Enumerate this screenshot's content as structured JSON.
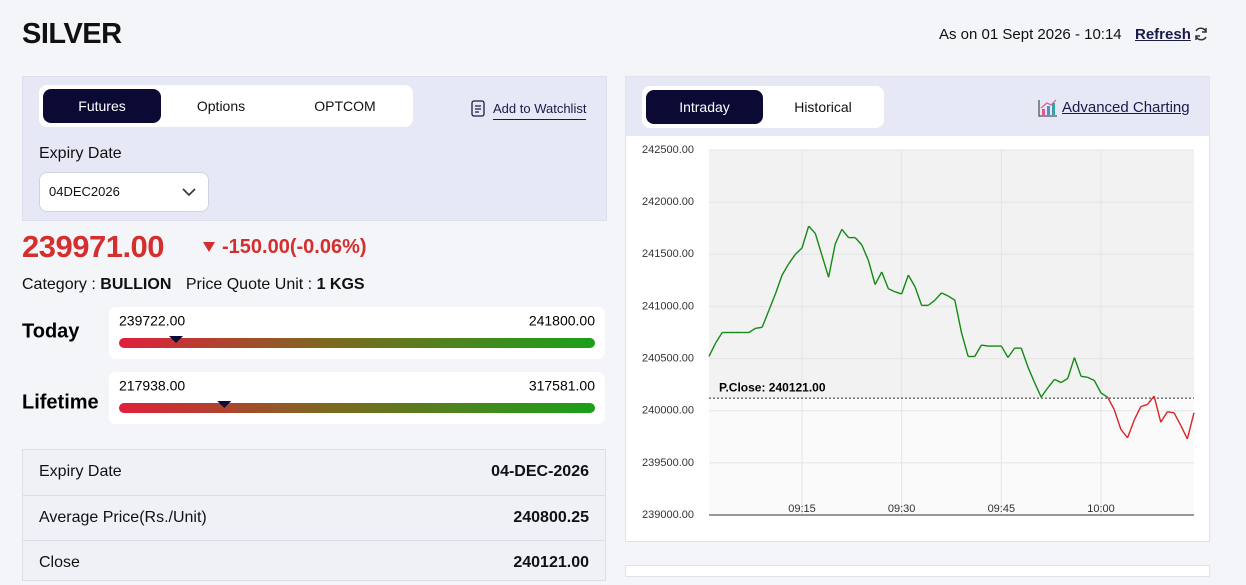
{
  "header": {
    "title": "SILVER",
    "as_on": "As on 01 Sept 2026 - 10:14",
    "refresh": "Refresh"
  },
  "left": {
    "tabs": [
      "Futures",
      "Options",
      "OPTCOM"
    ],
    "watchlist": "Add to Watchlist",
    "expiry_label": "Expiry Date",
    "expiry_value": "04DEC2026",
    "price": {
      "value": 239971,
      "label": "239971.00"
    },
    "change": "-150.00(-0.06%)",
    "category_label": "Category :",
    "category": "BULLION",
    "unit_label": "Price Quote Unit :",
    "unit": "1 KGS",
    "ranges": [
      {
        "label": "Today",
        "low": {
          "value": 239722,
          "label": "239722.00"
        },
        "high": {
          "value": 241800,
          "label": "241800.00"
        }
      },
      {
        "label": "Lifetime",
        "low": {
          "value": 217938,
          "label": "217938.00"
        },
        "high": {
          "value": 317581,
          "label": "317581.00"
        }
      }
    ],
    "details": [
      [
        "Expiry Date",
        "04-DEC-2026"
      ],
      [
        "Average Price(Rs./Unit)",
        "240800.25"
      ],
      [
        "Close",
        "240121.00"
      ]
    ]
  },
  "right": {
    "tabs": [
      "Intraday",
      "Historical"
    ],
    "advanced": "Advanced Charting"
  },
  "chart_data": {
    "type": "line",
    "x": [
      "09:01",
      "09:02",
      "09:03",
      "09:04",
      "09:05",
      "09:06",
      "09:07",
      "09:08",
      "09:09",
      "09:10",
      "09:11",
      "09:12",
      "09:13",
      "09:14",
      "09:15",
      "09:16",
      "09:17",
      "09:18",
      "09:19",
      "09:20",
      "09:21",
      "09:22",
      "09:23",
      "09:24",
      "09:25",
      "09:26",
      "09:27",
      "09:28",
      "09:29",
      "09:30",
      "09:31",
      "09:32",
      "09:33",
      "09:34",
      "09:35",
      "09:36",
      "09:37",
      "09:38",
      "09:39",
      "09:40",
      "09:41",
      "09:42",
      "09:43",
      "09:44",
      "09:45",
      "09:46",
      "09:47",
      "09:48",
      "09:49",
      "09:50",
      "09:51",
      "09:52",
      "09:53",
      "09:54",
      "09:55",
      "09:56",
      "09:57",
      "09:58",
      "09:59",
      "10:00",
      "10:01",
      "10:02",
      "10:03",
      "10:04",
      "10:05",
      "10:06",
      "10:07",
      "10:08",
      "10:09",
      "10:10",
      "10:11",
      "10:12",
      "10:13",
      "10:14"
    ],
    "values": [
      240520,
      240650,
      240750,
      240750,
      240750,
      240750,
      240750,
      240790,
      240800,
      240960,
      241120,
      241300,
      241410,
      241500,
      241560,
      241770,
      241700,
      241490,
      241280,
      241600,
      241740,
      241660,
      241660,
      241590,
      241440,
      241210,
      241330,
      241170,
      241140,
      241120,
      241300,
      241190,
      241010,
      241010,
      241060,
      241130,
      241100,
      241060,
      240750,
      240520,
      240520,
      240630,
      240620,
      240620,
      240620,
      240510,
      240600,
      240600,
      240420,
      240270,
      240130,
      240220,
      240300,
      240270,
      240310,
      240510,
      240330,
      240320,
      240290,
      240170,
      240130,
      240010,
      239820,
      239740,
      239910,
      240040,
      240060,
      240140,
      239890,
      239990,
      239980,
      239860,
      239730,
      239980
    ],
    "colors": {
      "above": "#138a13",
      "below": "#d92323"
    },
    "reference": {
      "value": 240121,
      "label": "P.Close: 240121.00"
    },
    "xlim": [
      "09:01",
      "10:14"
    ],
    "xticks": [
      "09:15",
      "09:30",
      "09:45",
      "10:00"
    ],
    "ylim": [
      239000,
      242500
    ],
    "yticks": [
      {
        "value": 239000,
        "label": "239000.00"
      },
      {
        "value": 239500,
        "label": "239500.00"
      },
      {
        "value": 240000,
        "label": "240000.00"
      },
      {
        "value": 240500,
        "label": "240500.00"
      },
      {
        "value": 241000,
        "label": "241000.00"
      },
      {
        "value": 241500,
        "label": "241500.00"
      },
      {
        "value": 242000,
        "label": "242000.00"
      },
      {
        "value": 242500,
        "label": "242500.00"
      }
    ],
    "grid": true
  }
}
